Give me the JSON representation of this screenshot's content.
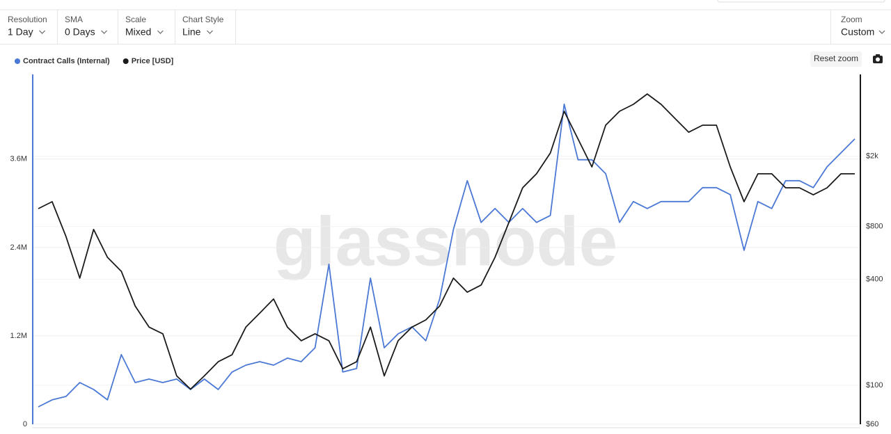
{
  "controls": [
    {
      "label": "Resolution",
      "value": "1 Day"
    },
    {
      "label": "SMA",
      "value": "0 Days"
    },
    {
      "label": "Scale",
      "value": "Mixed"
    },
    {
      "label": "Chart Style",
      "value": "Line"
    }
  ],
  "zoom": {
    "label": "Zoom",
    "value": "Custom"
  },
  "reset_zoom": "Reset zoom",
  "watermark": "glassnode",
  "chart_data": {
    "type": "line",
    "ylim": [
      0,
      4750000
    ],
    "yticks": [
      0,
      {
        "value": 1200000,
        "label": "1.2M"
      },
      {
        "value": 2400000,
        "label": "2.4M"
      },
      {
        "value": 3600000,
        "label": "3.6M"
      }
    ],
    "y2lim": [
      60,
      5840
    ],
    "y2scale": "log",
    "y2ticks": [
      {
        "value": 60,
        "label": "$60"
      },
      {
        "value": 100,
        "label": "$100"
      },
      {
        "value": 400,
        "label": "$400"
      },
      {
        "value": 800,
        "label": "$800"
      },
      {
        "value": 2000,
        "label": "$2k"
      }
    ],
    "grid": true,
    "legend": "top-left",
    "series": [
      {
        "name": "Contract Calls (Internal)",
        "color": "#4a78d4",
        "axis": "y",
        "values": [
          236000,
          331000,
          378000,
          567000,
          472000,
          331000,
          945000,
          567000,
          614000,
          567000,
          614000,
          472000,
          614000,
          472000,
          709000,
          803000,
          850000,
          803000,
          898000,
          850000,
          1039000,
          2173000,
          709000,
          756000,
          1984000,
          1039000,
          1228000,
          1323000,
          1134000,
          1701000,
          2646000,
          3307000,
          2740000,
          2929000,
          2740000,
          2929000,
          2740000,
          2835000,
          4346000,
          3591000,
          3591000,
          3402000,
          2740000,
          3024000,
          2929000,
          3024000,
          3024000,
          3024000,
          3213000,
          3213000,
          3118000,
          2362000,
          3024000,
          2929000,
          3307000,
          3307000,
          3213000,
          3496000,
          3685000,
          3874000
        ]
      },
      {
        "name": "Price [USD]",
        "color": "#1a1a1a",
        "axis": "y2",
        "values": [
          1008,
          1104,
          700,
          406,
          768,
          533,
          444,
          282,
          214,
          196,
          113,
          95,
          113,
          136,
          149,
          214,
          257,
          309,
          214,
          179,
          196,
          179,
          124,
          136,
          214,
          113,
          179,
          214,
          235,
          282,
          406,
          338,
          371,
          533,
          840,
          1325,
          1590,
          2088,
          3606,
          2508,
          1740,
          3006,
          3606,
          3948,
          4524,
          3948,
          3288,
          2742,
          3006,
          3006,
          1740,
          1104,
          1590,
          1590,
          1325,
          1325,
          1208,
          1325,
          1590,
          1590
        ]
      }
    ]
  }
}
